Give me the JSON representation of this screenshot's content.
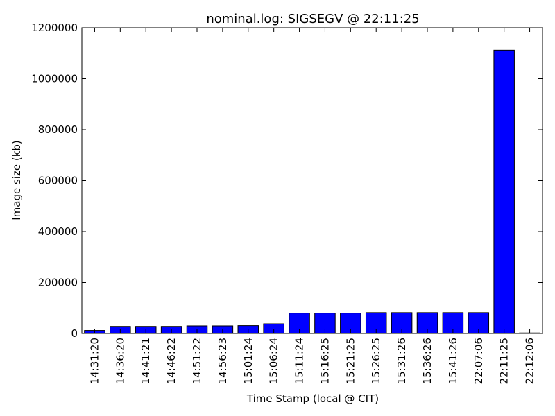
{
  "chart_data": {
    "type": "bar",
    "title": "nominal.log: SIGSEGV @ 22:11:25",
    "xlabel": "Time Stamp (local @ CIT)",
    "ylabel": "Image size (kb)",
    "ylim": [
      0,
      1200000
    ],
    "yticks": [
      0,
      200000,
      400000,
      600000,
      800000,
      1000000,
      1200000
    ],
    "grid": false,
    "categories": [
      "14:31:20",
      "14:36:20",
      "14:41:21",
      "14:46:22",
      "14:51:22",
      "14:56:23",
      "15:01:24",
      "15:06:24",
      "15:11:24",
      "15:16:25",
      "15:21:25",
      "15:26:25",
      "15:31:26",
      "15:36:26",
      "15:41:26",
      "22:07:06",
      "22:11:25",
      "22:12:06"
    ],
    "values": [
      12000,
      28000,
      28000,
      28000,
      30000,
      30000,
      31000,
      38000,
      80000,
      80000,
      80000,
      82000,
      82000,
      82000,
      82000,
      82000,
      1112000,
      2000
    ],
    "bar_color": "#0000ff",
    "edge_color": "#000000"
  }
}
